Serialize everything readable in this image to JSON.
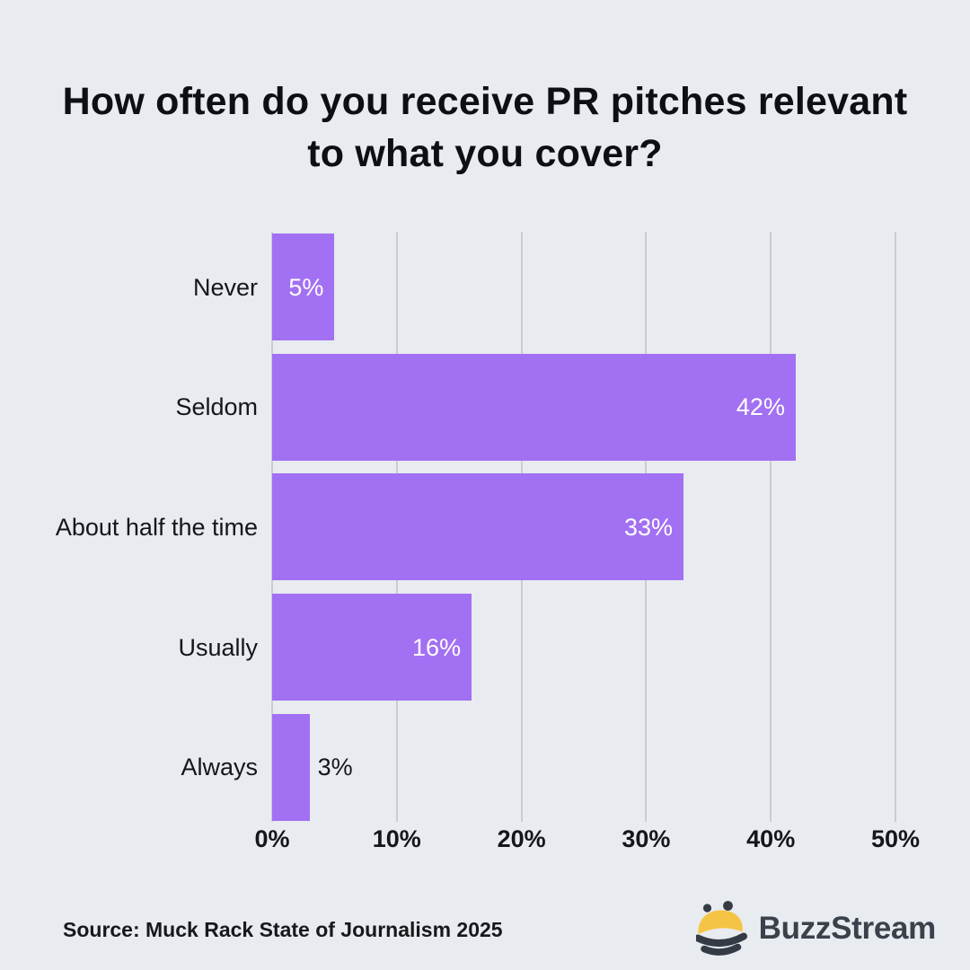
{
  "title_line1": "How often do you receive PR pitches relevant",
  "title_line2": "to what you cover?",
  "chart_data": {
    "type": "bar",
    "orientation": "horizontal",
    "categories": [
      "Never",
      "Seldom",
      "About half the time",
      "Usually",
      "Always"
    ],
    "values": [
      5,
      42,
      33,
      16,
      3
    ],
    "value_labels": [
      "5%",
      "42%",
      "33%",
      "16%",
      "3%"
    ],
    "title": "How often do you receive PR pitches relevant to what you cover?",
    "xlabel": "",
    "ylabel": "",
    "xlim": [
      0,
      50
    ],
    "x_ticks": [
      "0%",
      "10%",
      "20%",
      "30%",
      "40%",
      "50%"
    ],
    "x_tick_values": [
      0,
      10,
      20,
      30,
      40,
      50
    ],
    "grid": "vertical",
    "legend": "none"
  },
  "colors": {
    "background": "#E8EBEF",
    "bar": "#A270F2",
    "gridline": "#C9CDD2",
    "text": "#15161A",
    "value_label_inside": "#FFFFFF",
    "logo_text": "#3A414B",
    "bee_yellow": "#F6C444",
    "bee_dark": "#343B44"
  },
  "footer": {
    "source": "Source: Muck Rack State of Journalism 2025",
    "logo_text": "BuzzStream"
  }
}
